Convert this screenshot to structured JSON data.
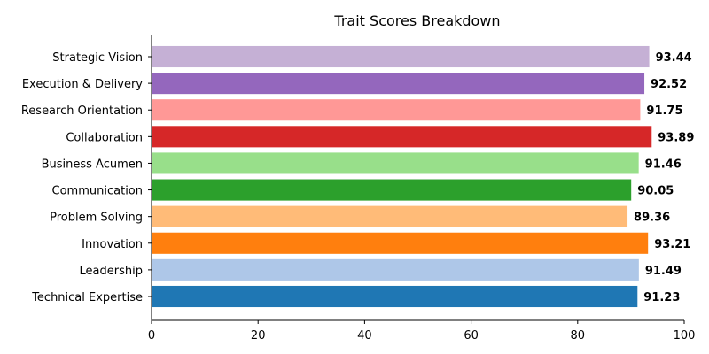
{
  "chart_data": {
    "type": "bar",
    "orientation": "horizontal",
    "title": "Trait Scores Breakdown",
    "xlabel": "",
    "ylabel": "",
    "xlim": [
      0,
      100
    ],
    "xticks": [
      0,
      20,
      40,
      60,
      80,
      100
    ],
    "grid": false,
    "categories": [
      "Technical Expertise",
      "Leadership",
      "Innovation",
      "Problem Solving",
      "Communication",
      "Business Acumen",
      "Collaboration",
      "Research Orientation",
      "Execution & Delivery",
      "Strategic Vision"
    ],
    "values": [
      91.23,
      91.49,
      93.21,
      89.36,
      90.05,
      91.46,
      93.89,
      91.75,
      92.52,
      93.44
    ],
    "value_labels": [
      "91.23",
      "91.49",
      "93.21",
      "89.36",
      "90.05",
      "91.46",
      "93.89",
      "91.75",
      "92.52",
      "93.44"
    ],
    "colors": [
      "#1f77b4",
      "#aec7e8",
      "#ff7f0e",
      "#ffbb78",
      "#2ca02c",
      "#98df8a",
      "#d62728",
      "#ff9896",
      "#9467bd",
      "#c5b0d5"
    ]
  }
}
